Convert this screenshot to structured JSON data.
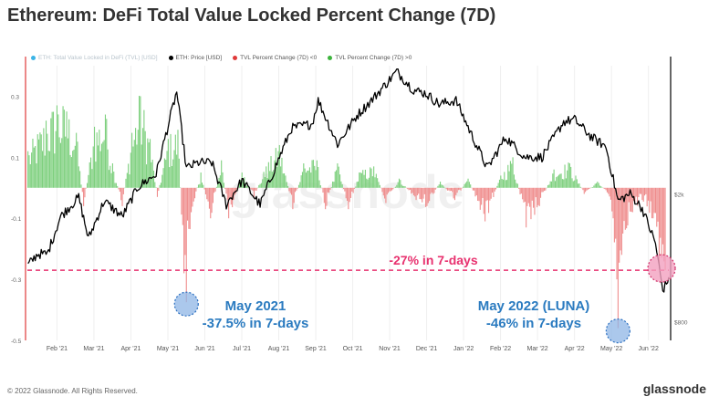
{
  "title": "Ethereum: DeFi Total Value Locked Percent Change (7D)",
  "legend": [
    {
      "label": "ETH: Total Value Locked in DeFi (TVL) [USD]",
      "color": "#3bb4e6",
      "muted": true
    },
    {
      "label": "ETH: Price [USD]",
      "color": "#000000",
      "muted": false
    },
    {
      "label": "TVL Percent Change (7D) <0",
      "color": "#e03a3a",
      "muted": false
    },
    {
      "label": "TVL Percent Change (7D) >0",
      "color": "#3cb43c",
      "muted": false
    }
  ],
  "footer": {
    "copyright": "© 2022 Glassnode. All Rights Reserved.",
    "brand": "glassnode"
  },
  "watermark": "glassnode",
  "colors": {
    "positive": "#7ed07e",
    "negative": "#ef8c8c",
    "price": "#000000",
    "annotation_text": "#2b7bc0",
    "threshold": "#e8326f",
    "circle_blue": "#8fb6e6",
    "circle_pink": "#f2a0bf"
  },
  "chart_data": {
    "type": "bar",
    "x_tick_labels": [
      "Feb '21",
      "Mar '21",
      "Apr '21",
      "May '21",
      "Jun '21",
      "Jul '21",
      "Aug '21",
      "Sep '21",
      "Oct '21",
      "Nov '21",
      "Dec '21",
      "Jan '22",
      "Feb '22",
      "Mar '22",
      "Apr '22",
      "May '22",
      "Jun '22"
    ],
    "x_range": [
      "2021-01-07",
      "2022-06-26"
    ],
    "y_left_ticks": [
      "0.3",
      "0.1",
      "-0.1",
      "-0.3",
      "-0.5"
    ],
    "y_left_range": [
      -0.5,
      0.4
    ],
    "y_right_ticks": [
      "$2k",
      "$800"
    ],
    "y_right_scale": "log",
    "price_range_usd": [
      700,
      5000
    ],
    "series": [
      {
        "name": "TVL Percent Change (7D)",
        "kind": "bars",
        "anchors": [
          [
            "2021-01-09",
            0.12
          ],
          [
            "2021-01-24",
            0.22
          ],
          [
            "2021-02-02",
            0.27
          ],
          [
            "2021-02-10",
            0.25
          ],
          [
            "2021-02-18",
            0.18
          ],
          [
            "2021-02-24",
            -0.06
          ],
          [
            "2021-03-05",
            0.2
          ],
          [
            "2021-03-14",
            0.24
          ],
          [
            "2021-03-20",
            0.08
          ],
          [
            "2021-03-28",
            -0.06
          ],
          [
            "2021-04-05",
            0.18
          ],
          [
            "2021-04-12",
            0.3
          ],
          [
            "2021-04-20",
            0.16
          ],
          [
            "2021-04-26",
            -0.03
          ],
          [
            "2021-05-05",
            0.16
          ],
          [
            "2021-05-13",
            0.19
          ],
          [
            "2021-05-18",
            -0.28
          ],
          [
            "2021-05-20",
            -0.375
          ],
          [
            "2021-05-24",
            -0.08
          ],
          [
            "2021-06-01",
            0.05
          ],
          [
            "2021-06-09",
            -0.1
          ],
          [
            "2021-06-18",
            0.09
          ],
          [
            "2021-06-24",
            -0.1
          ],
          [
            "2021-07-05",
            0.05
          ],
          [
            "2021-07-15",
            -0.03
          ],
          [
            "2021-07-25",
            0.07
          ],
          [
            "2021-08-05",
            0.14
          ],
          [
            "2021-08-16",
            -0.07
          ],
          [
            "2021-08-25",
            0.08
          ],
          [
            "2021-09-05",
            0.09
          ],
          [
            "2021-09-12",
            -0.07
          ],
          [
            "2021-09-22",
            0.08
          ],
          [
            "2021-10-01",
            -0.07
          ],
          [
            "2021-10-10",
            0.05
          ],
          [
            "2021-10-22",
            0.07
          ],
          [
            "2021-11-01",
            -0.05
          ],
          [
            "2021-11-12",
            0.03
          ],
          [
            "2021-11-26",
            -0.04
          ],
          [
            "2021-12-05",
            -0.06
          ],
          [
            "2021-12-16",
            0.02
          ],
          [
            "2021-12-28",
            -0.04
          ],
          [
            "2022-01-08",
            0.03
          ],
          [
            "2022-01-22",
            -0.11
          ],
          [
            "2022-02-04",
            0.04
          ],
          [
            "2022-02-14",
            0.1
          ],
          [
            "2022-02-25",
            -0.13
          ],
          [
            "2022-03-08",
            -0.06
          ],
          [
            "2022-03-20",
            0.06
          ],
          [
            "2022-04-02",
            0.08
          ],
          [
            "2022-04-14",
            -0.02
          ],
          [
            "2022-04-25",
            0.02
          ],
          [
            "2022-05-04",
            -0.02
          ],
          [
            "2022-05-08",
            -0.1
          ],
          [
            "2022-05-11",
            -0.3
          ],
          [
            "2022-05-12",
            -0.46
          ],
          [
            "2022-05-16",
            -0.15
          ],
          [
            "2022-05-24",
            -0.08
          ],
          [
            "2022-06-01",
            -0.04
          ],
          [
            "2022-06-10",
            -0.1
          ],
          [
            "2022-06-15",
            -0.25
          ],
          [
            "2022-06-20",
            -0.27
          ]
        ]
      },
      {
        "name": "ETH: Price [USD]",
        "kind": "line",
        "values_usd": [
          [
            "2021-01-09",
            1200
          ],
          [
            "2021-01-17",
            1300
          ],
          [
            "2021-01-25",
            1300
          ],
          [
            "2021-02-05",
            1700
          ],
          [
            "2021-02-20",
            1950
          ],
          [
            "2021-02-28",
            1450
          ],
          [
            "2021-03-13",
            1900
          ],
          [
            "2021-03-28",
            1700
          ],
          [
            "2021-04-10",
            2100
          ],
          [
            "2021-04-25",
            2300
          ],
          [
            "2021-05-02",
            2950
          ],
          [
            "2021-05-12",
            4150
          ],
          [
            "2021-05-20",
            2400
          ],
          [
            "2021-05-30",
            2500
          ],
          [
            "2021-06-10",
            2500
          ],
          [
            "2021-06-22",
            1850
          ],
          [
            "2021-07-05",
            2200
          ],
          [
            "2021-07-20",
            1850
          ],
          [
            "2021-08-05",
            2600
          ],
          [
            "2021-08-15",
            3200
          ],
          [
            "2021-09-01",
            3300
          ],
          [
            "2021-09-06",
            3900
          ],
          [
            "2021-09-22",
            2850
          ],
          [
            "2021-10-08",
            3500
          ],
          [
            "2021-10-20",
            3900
          ],
          [
            "2021-10-30",
            4300
          ],
          [
            "2021-11-10",
            4800
          ],
          [
            "2021-11-24",
            4200
          ],
          [
            "2021-12-04",
            4100
          ],
          [
            "2021-12-15",
            3800
          ],
          [
            "2021-12-29",
            3900
          ],
          [
            "2022-01-10",
            3100
          ],
          [
            "2022-01-24",
            2400
          ],
          [
            "2022-02-08",
            3000
          ],
          [
            "2022-02-24",
            2600
          ],
          [
            "2022-03-10",
            2600
          ],
          [
            "2022-03-28",
            3350
          ],
          [
            "2022-04-06",
            3400
          ],
          [
            "2022-04-20",
            3000
          ],
          [
            "2022-05-02",
            2800
          ],
          [
            "2022-05-12",
            1900
          ],
          [
            "2022-05-22",
            2000
          ],
          [
            "2022-06-01",
            1800
          ],
          [
            "2022-06-12",
            1400
          ],
          [
            "2022-06-18",
            1000
          ],
          [
            "2022-06-23",
            1100
          ]
        ]
      }
    ],
    "reference_line": {
      "y": -0.27,
      "label": "-27% in 7-days"
    },
    "annotations": [
      {
        "date": "2021-05-20",
        "y": -0.375,
        "lines": [
          "May 2021",
          "-37.5% in 7-days"
        ]
      },
      {
        "date": "2022-05-12",
        "y": -0.46,
        "lines": [
          "May 2022 (LUNA)",
          "-46% in 7-days"
        ]
      },
      {
        "date": "2022-06-20",
        "y": -0.27,
        "lines": []
      }
    ]
  }
}
